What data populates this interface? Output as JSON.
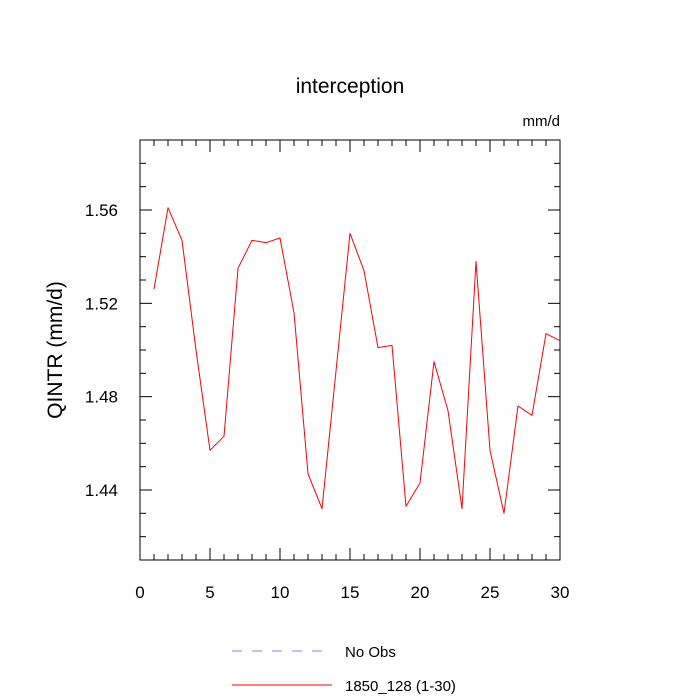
{
  "chart_data": {
    "type": "line",
    "title": "interception",
    "units_label": "mm/d",
    "xlabel": "",
    "ylabel": "QINTR  (mm/d)",
    "xlim": [
      0,
      30
    ],
    "ylim": [
      1.41,
      1.59
    ],
    "x_ticks": [
      0,
      5,
      10,
      15,
      20,
      25,
      30
    ],
    "x_tick_labels": [
      "0",
      "5",
      "10",
      "15",
      "20",
      "25",
      "30"
    ],
    "y_ticks": [
      1.44,
      1.48,
      1.52,
      1.56
    ],
    "y_tick_labels": [
      "1.44",
      "1.48",
      "1.52",
      "1.56"
    ],
    "x_minor_step": 1,
    "y_minor_step": 0.01,
    "grid": false,
    "legend_position": "bottom",
    "series": [
      {
        "name": "1850_128 (1-30)",
        "color": "#ff0000",
        "dash": "solid",
        "x": [
          1,
          2,
          3,
          4,
          5,
          6,
          7,
          8,
          9,
          10,
          11,
          12,
          13,
          14,
          15,
          16,
          17,
          18,
          19,
          20,
          21,
          22,
          23,
          24,
          25,
          26,
          27,
          28,
          29,
          30
        ],
        "values": [
          1.526,
          1.561,
          1.547,
          1.5,
          1.457,
          1.463,
          1.535,
          1.547,
          1.546,
          1.548,
          1.516,
          1.447,
          1.432,
          1.491,
          1.55,
          1.534,
          1.501,
          1.502,
          1.433,
          1.443,
          1.495,
          1.474,
          1.432,
          1.538,
          1.457,
          1.43,
          1.476,
          1.472,
          1.507,
          1.504
        ]
      }
    ],
    "legend": [
      {
        "name": "No Obs",
        "color": "#8080ff",
        "dash": "dashed"
      },
      {
        "name": "1850_128 (1-30)",
        "color": "#ff0000",
        "dash": "solid"
      }
    ]
  }
}
